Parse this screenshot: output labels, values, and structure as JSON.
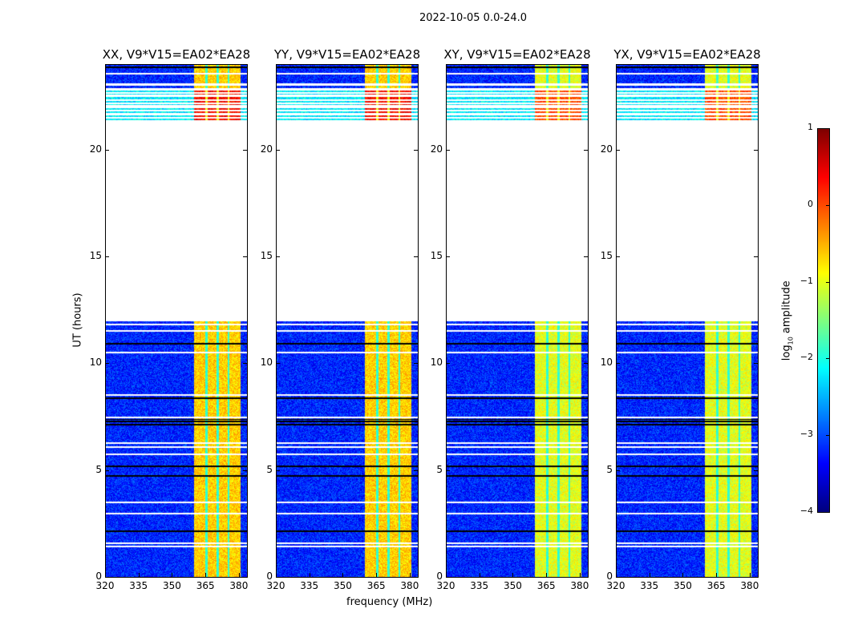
{
  "title": "2022-10-05 0.0-24.0",
  "chart_data": {
    "type": "heatmap",
    "xlabel": "frequency (MHz)",
    "ylabel": "UT (hours)",
    "xlim": [
      320,
      384
    ],
    "ylim": [
      0,
      24
    ],
    "xticks": [
      320,
      335,
      350,
      365,
      380
    ],
    "yticks": [
      0,
      5,
      10,
      15,
      20
    ],
    "panels": [
      {
        "title": "XX, V9*V15=EA02*EA28"
      },
      {
        "title": "YY, V9*V15=EA02*EA28"
      },
      {
        "title": "XY, V9*V15=EA02*EA28"
      },
      {
        "title": "YX, V9*V15=EA02*EA28"
      }
    ],
    "data_coverage_hours": [
      [
        0,
        12.0
      ],
      [
        21.4,
        24
      ]
    ],
    "rfi_band_mhz": [
      360,
      380
    ],
    "background_level_log10": -3.2,
    "rfi_level_log10": -0.8,
    "colorbar": {
      "label": "log10 amplitude",
      "label_main": "log",
      "label_sub": "10",
      "label_rest": " amplitude",
      "range": [
        -4,
        1
      ],
      "ticks": [
        1,
        0,
        -1,
        -2,
        -3,
        -4
      ],
      "tick_labels": [
        "1",
        "0",
        "−1",
        "−2",
        "−3",
        "−4"
      ],
      "colormap": "jet"
    }
  }
}
